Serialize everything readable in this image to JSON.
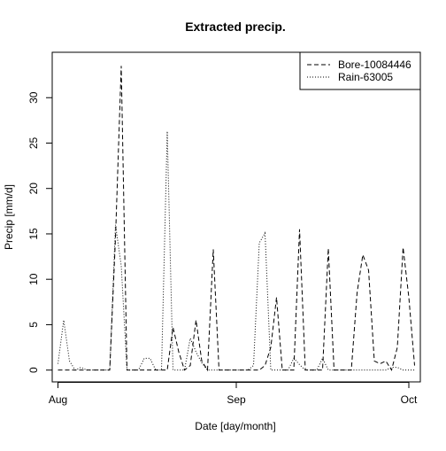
{
  "chart_data": {
    "type": "line",
    "title": "Extracted precip.",
    "xlabel": "Date [day/month]",
    "ylabel": "Precip [mm/d]",
    "x_start": "2021-08-01",
    "x_end": "2021-10-01",
    "xlim": [
      "2021-07-31",
      "2021-10-03"
    ],
    "ylim": [
      -1.3,
      35.0
    ],
    "x_ticks": [
      {
        "date": "2021-08-01",
        "label": "Aug"
      },
      {
        "date": "2021-09-01",
        "label": "Sep"
      },
      {
        "date": "2021-10-01",
        "label": "Oct"
      }
    ],
    "y_ticks": [
      0,
      5,
      10,
      15,
      20,
      25,
      30
    ],
    "legend_position": "top-right",
    "series": [
      {
        "name": "Bore-10084446",
        "style": "dashed",
        "color": "#000000",
        "values": [
          0,
          0,
          0,
          0,
          0,
          0,
          0,
          0,
          0,
          0,
          14.5,
          33.5,
          0,
          0,
          0,
          0,
          0,
          0,
          0,
          0,
          4.7,
          2.0,
          0,
          0.5,
          5.5,
          1.0,
          0,
          13.3,
          0,
          0,
          0,
          0,
          0,
          0,
          0,
          0,
          0.5,
          2.5,
          8.0,
          0,
          0,
          0,
          15.5,
          0,
          0,
          0,
          0,
          13.4,
          0,
          0,
          0,
          0,
          8.5,
          12.7,
          11.0,
          1.0,
          0.7,
          1.0,
          0,
          2.5,
          13.5,
          8.0,
          0.5
        ]
      },
      {
        "name": "Rain-63005",
        "style": "dotted",
        "color": "#000000",
        "values": [
          0.7,
          5.5,
          1.0,
          0,
          0.3,
          0,
          0,
          0,
          0,
          0,
          16.0,
          11.5,
          0,
          0,
          0,
          1.3,
          1.3,
          0,
          0,
          26.3,
          0,
          0,
          0,
          3.5,
          2.0,
          0.8,
          0,
          0,
          0,
          0,
          0,
          0,
          0,
          0,
          0.5,
          14.0,
          15.1,
          0,
          0,
          0,
          0,
          1.3,
          0.6,
          0,
          0,
          0,
          1.3,
          0,
          0,
          0,
          0,
          0,
          0,
          0,
          0,
          0,
          0,
          0,
          0.3,
          0.3,
          0,
          0,
          0
        ]
      }
    ]
  }
}
